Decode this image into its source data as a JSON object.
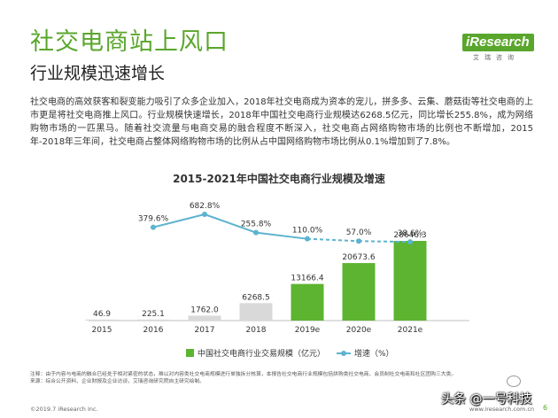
{
  "header": {
    "title": "社交电商站上风口",
    "subtitle": "行业规模迅速增长"
  },
  "logo": {
    "brand": "iResearch",
    "sub": "艾瑞咨询",
    "color": "#5aa62c"
  },
  "intro": "社交电商的高效获客和裂变能力吸引了众多企业加入，2018年社交电商成为资本的宠儿，拼多多、云集、蘑菇街等社交电商的上市更是将社交电商推上风口。行业规模快速增长，2018年中国社交电商行业规模达6268.5亿元，同比增长255.8%，成为网络购物市场的一匹黑马。随着社交流量与电商交易的融合程度不断深入，社交电商占网络购物市场的比例也不断增加，2015年-2018年三年间，社交电商占整体网络购物市场的比例从占中国网络购物市场比例从0.1%增加到了7.8%。",
  "chart_data": {
    "type": "bar",
    "title": "2015-2021年中国社交电商行业规模及增速",
    "categories": [
      "2015",
      "2016",
      "2017",
      "2018",
      "2019e",
      "2020e",
      "2021e"
    ],
    "series": [
      {
        "name": "中国社交电商行业交易规模（亿元）",
        "type": "bar",
        "values": [
          46.9,
          225.1,
          1762.0,
          6268.5,
          13166.4,
          20673.6,
          28646.3
        ],
        "labels": [
          "46.9",
          "225.1",
          "1762.0",
          "6268.5",
          "13166.4",
          "20673.6",
          "28646.3"
        ],
        "colors": [
          "#d9d9d9",
          "#d9d9d9",
          "#d9d9d9",
          "#d9d9d9",
          "#5cb431",
          "#5cb431",
          "#5cb431"
        ]
      },
      {
        "name": "增速（%）",
        "type": "line",
        "values": [
          null,
          379.6,
          682.8,
          255.8,
          110.0,
          57.0,
          38.6
        ],
        "labels": [
          "",
          "379.6%",
          "682.8%",
          "255.8%",
          "110.0%",
          "57.0%",
          "38.6%"
        ],
        "color": "#5cb3cf",
        "dashed_from_index": 4
      }
    ],
    "ylim_bar": [
      0,
      28646.3
    ],
    "ylim_line": [
      0,
      682.8
    ],
    "grid": false,
    "legend_position": "bottom"
  },
  "notes": {
    "line1": "注释：由于内容与电商的融合已经处于相对紧密的状态，难以对内容类社交电商规模进行单独拆分核算，本报告社交电商行业规模包括拼购类社交电商、会员制社交电商和社区团购三大类。",
    "line2": "来源：综合公开资料、企业财报及企业访谈，艾瑞咨询研究院自主研究绘制。"
  },
  "footer": {
    "copyright": "©2019.7 iResearch Inc.",
    "site": "www.iresearch.com.cn",
    "page": "6"
  },
  "watermark": "头条 @一号科技"
}
